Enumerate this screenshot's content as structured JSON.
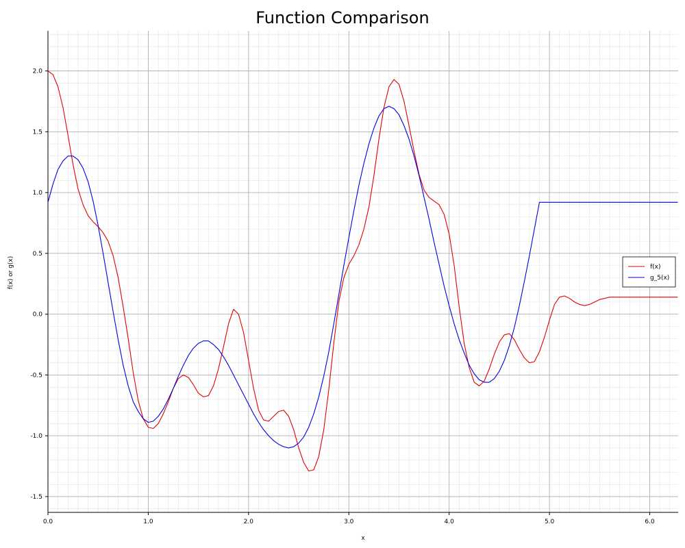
{
  "chart_data": {
    "type": "line",
    "title": "Function Comparison",
    "xlabel": "x",
    "ylabel": "f(x) or g(x)",
    "xlim": [
      0,
      6.2832
    ],
    "ylim": [
      -1.63,
      2.33
    ],
    "x_ticks": [
      0.0,
      1.0,
      2.0,
      3.0,
      4.0,
      5.0,
      6.0
    ],
    "x_tick_labels": [
      "0.0",
      "1.0",
      "2.0",
      "3.0",
      "4.0",
      "5.0",
      "6.0"
    ],
    "y_ticks": [
      -1.5,
      -1.0,
      -0.5,
      0.0,
      0.5,
      1.0,
      1.5,
      2.0
    ],
    "y_tick_labels": [
      "-1.5",
      "-1.0",
      "-0.5",
      "0.0",
      "0.5",
      "1.0",
      "1.5",
      "2.0"
    ],
    "grid": true,
    "minor_grid": true,
    "legend_position": "right",
    "series": [
      {
        "name": "f(x)",
        "color": "#e00000",
        "x": [
          0.0,
          0.05,
          0.1,
          0.15,
          0.2,
          0.25,
          0.3,
          0.35,
          0.4,
          0.45,
          0.5,
          0.55,
          0.6,
          0.65,
          0.7,
          0.75,
          0.8,
          0.85,
          0.9,
          0.95,
          1.0,
          1.05,
          1.1,
          1.15,
          1.2,
          1.25,
          1.3,
          1.35,
          1.4,
          1.45,
          1.5,
          1.55,
          1.6,
          1.65,
          1.7,
          1.75,
          1.8,
          1.85,
          1.9,
          1.95,
          2.0,
          2.05,
          2.1,
          2.15,
          2.2,
          2.25,
          2.3,
          2.35,
          2.4,
          2.45,
          2.5,
          2.55,
          2.6,
          2.65,
          2.7,
          2.75,
          2.8,
          2.85,
          2.9,
          2.95,
          3.0,
          3.05,
          3.1,
          3.15,
          3.2,
          3.25,
          3.3,
          3.35,
          3.4,
          3.45,
          3.5,
          3.55,
          3.6,
          3.65,
          3.7,
          3.75,
          3.8,
          3.85,
          3.9,
          3.95,
          4.0,
          4.05,
          4.1,
          4.15,
          4.2,
          4.25,
          4.3,
          4.35,
          4.4,
          4.45,
          4.5,
          4.55,
          4.6,
          4.65,
          4.7,
          4.75,
          4.8,
          4.85,
          4.9,
          4.95,
          5.0,
          5.05,
          5.1,
          5.15,
          5.2,
          5.25,
          5.3,
          5.35,
          5.4,
          5.45,
          5.5,
          5.55,
          5.6,
          5.65,
          5.7,
          5.75,
          5.8,
          5.85,
          5.9,
          5.95,
          6.0,
          6.05,
          6.1,
          6.15,
          6.2,
          6.25,
          6.28
        ],
        "y": [
          2.0,
          1.97,
          1.87,
          1.7,
          1.47,
          1.23,
          1.03,
          0.9,
          0.81,
          0.76,
          0.72,
          0.67,
          0.6,
          0.48,
          0.3,
          0.06,
          -0.2,
          -0.48,
          -0.71,
          -0.86,
          -0.93,
          -0.94,
          -0.9,
          -0.82,
          -0.72,
          -0.61,
          -0.53,
          -0.5,
          -0.52,
          -0.58,
          -0.65,
          -0.68,
          -0.67,
          -0.59,
          -0.45,
          -0.27,
          -0.08,
          0.04,
          0.0,
          -0.15,
          -0.38,
          -0.61,
          -0.79,
          -0.87,
          -0.88,
          -0.84,
          -0.8,
          -0.79,
          -0.84,
          -0.95,
          -1.1,
          -1.22,
          -1.29,
          -1.28,
          -1.17,
          -0.95,
          -0.62,
          -0.24,
          0.1,
          0.3,
          0.41,
          0.48,
          0.57,
          0.7,
          0.88,
          1.14,
          1.44,
          1.7,
          1.87,
          1.93,
          1.89,
          1.75,
          1.55,
          1.34,
          1.15,
          1.02,
          0.96,
          0.93,
          0.9,
          0.82,
          0.66,
          0.4,
          0.06,
          -0.24,
          -0.44,
          -0.56,
          -0.59,
          -0.55,
          -0.45,
          -0.33,
          -0.23,
          -0.17,
          -0.16,
          -0.21,
          -0.29,
          -0.36,
          -0.4,
          -0.39,
          -0.31,
          -0.19,
          -0.05,
          0.08,
          0.14,
          0.15,
          0.13,
          0.1,
          0.08,
          0.07,
          0.08,
          0.1,
          0.12,
          0.13,
          0.14,
          0.14,
          0.14,
          0.14,
          0.14,
          0.14,
          0.14,
          0.14,
          0.14,
          0.14,
          0.14,
          0.14,
          0.14,
          0.14,
          0.14
        ]
      },
      {
        "name": "g_5(x)",
        "color": "#0000e0",
        "x": [
          0.0,
          0.05,
          0.1,
          0.15,
          0.2,
          0.25,
          0.3,
          0.35,
          0.4,
          0.45,
          0.5,
          0.55,
          0.6,
          0.65,
          0.7,
          0.75,
          0.8,
          0.85,
          0.9,
          0.95,
          1.0,
          1.05,
          1.1,
          1.15,
          1.2,
          1.25,
          1.3,
          1.35,
          1.4,
          1.45,
          1.5,
          1.55,
          1.6,
          1.65,
          1.7,
          1.75,
          1.8,
          1.85,
          1.9,
          1.95,
          2.0,
          2.05,
          2.1,
          2.15,
          2.2,
          2.25,
          2.3,
          2.35,
          2.4,
          2.45,
          2.5,
          2.55,
          2.6,
          2.65,
          2.7,
          2.75,
          2.8,
          2.85,
          2.9,
          2.95,
          3.0,
          3.05,
          3.1,
          3.15,
          3.2,
          3.25,
          3.3,
          3.35,
          3.4,
          3.45,
          3.5,
          3.55,
          3.6,
          3.65,
          3.7,
          3.75,
          3.8,
          3.85,
          3.9,
          3.95,
          4.0,
          4.05,
          4.1,
          4.15,
          4.2,
          4.25,
          4.3,
          4.35,
          4.4,
          4.45,
          4.5,
          4.55,
          4.6,
          4.65,
          4.7,
          4.75,
          4.8,
          4.85,
          4.9,
          4.95,
          5.0,
          5.05,
          5.1,
          5.15,
          5.2,
          5.25,
          5.3,
          5.35,
          5.4,
          5.45,
          5.5,
          5.55,
          5.6,
          5.65,
          5.7,
          5.75,
          5.8,
          5.85,
          5.9,
          5.95,
          6.0,
          6.05,
          6.1,
          6.15,
          6.2,
          6.25,
          6.28
        ],
        "y": [
          0.92,
          1.07,
          1.19,
          1.26,
          1.3,
          1.3,
          1.27,
          1.2,
          1.09,
          0.93,
          0.73,
          0.5,
          0.26,
          0.02,
          -0.21,
          -0.42,
          -0.59,
          -0.72,
          -0.8,
          -0.86,
          -0.89,
          -0.88,
          -0.84,
          -0.78,
          -0.7,
          -0.61,
          -0.51,
          -0.42,
          -0.34,
          -0.28,
          -0.24,
          -0.22,
          -0.22,
          -0.25,
          -0.29,
          -0.35,
          -0.42,
          -0.5,
          -0.58,
          -0.66,
          -0.74,
          -0.82,
          -0.89,
          -0.95,
          -1.0,
          -1.04,
          -1.07,
          -1.09,
          -1.1,
          -1.09,
          -1.06,
          -1.01,
          -0.93,
          -0.82,
          -0.68,
          -0.51,
          -0.31,
          -0.08,
          0.16,
          0.4,
          0.63,
          0.85,
          1.06,
          1.24,
          1.4,
          1.53,
          1.63,
          1.69,
          1.71,
          1.69,
          1.64,
          1.55,
          1.44,
          1.3,
          1.14,
          0.96,
          0.78,
          0.59,
          0.41,
          0.23,
          0.07,
          -0.08,
          -0.21,
          -0.32,
          -0.42,
          -0.49,
          -0.54,
          -0.56,
          -0.56,
          -0.53,
          -0.47,
          -0.38,
          -0.26,
          -0.11,
          0.07,
          0.27,
          0.48,
          0.7,
          0.92,
          0.92,
          0.92,
          0.92,
          0.92,
          0.92,
          0.92,
          0.92,
          0.92,
          0.92,
          0.92,
          0.92,
          0.92,
          0.92,
          0.92,
          0.92,
          0.92,
          0.92,
          0.92,
          0.92,
          0.92,
          0.92,
          0.92,
          0.92,
          0.92,
          0.92,
          0.92,
          0.92,
          0.92
        ]
      }
    ]
  }
}
